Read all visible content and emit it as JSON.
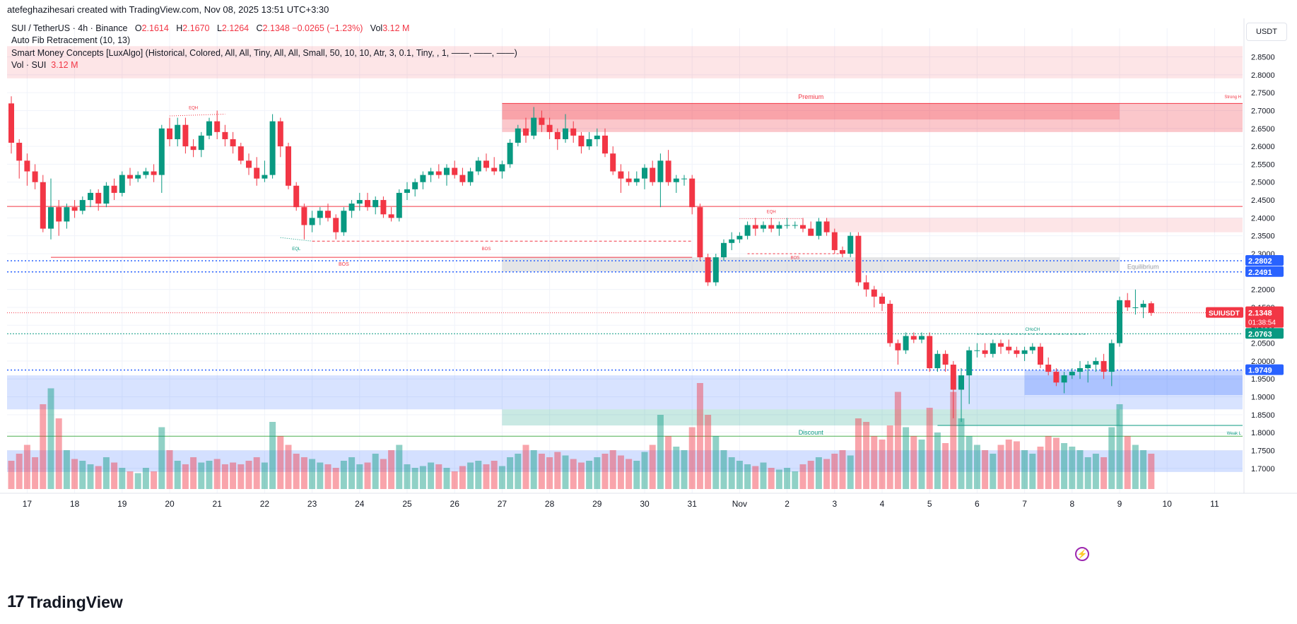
{
  "header": {
    "text": "atefeghazihesari created with TradingView.com, Nov 08, 2025 13:51 UTC+3:30"
  },
  "legend": {
    "symbol": "SUI / TetherUS · 4h · Binance",
    "o_label": "O",
    "o_value": "2.1614",
    "h_label": "H",
    "h_value": "2.1670",
    "l_label": "L",
    "l_value": "2.1264",
    "c_label": "C",
    "c_value": "2.1348",
    "change": "−0.0265 (−1.23%)",
    "vol_label": "Vol",
    "vol_value": "3.12 M",
    "indicator1": "Auto Fib Retracement (10, 13)",
    "indicator2": "Smart Money Concepts [LuxAlgo] (Historical, Colored, All, All, Tiny, All, All, Small, 50, 10, 10, Atr, 3, 0.1, Tiny, , 1, ——, ——, ——)",
    "indicator3_label": "Vol · SUI",
    "indicator3_value": "3.12 M"
  },
  "currency": "USDT",
  "footer": {
    "logo_mark": "17",
    "logo_text": "TradingView"
  },
  "colors": {
    "up": "#089981",
    "down": "#f23645",
    "blue": "#2962ff",
    "grid": "#f0f3fa"
  },
  "chart_data": {
    "type": "candlestick",
    "symbol": "SUIUSDT",
    "timeframe": "4h",
    "ylim": [
      1.67,
      2.93
    ],
    "y_ticks": [
      1.7,
      1.75,
      1.8,
      1.85,
      1.9,
      1.95,
      2.0,
      2.05,
      2.1,
      2.15,
      2.2,
      2.25,
      2.3,
      2.35,
      2.4,
      2.45,
      2.5,
      2.55,
      2.6,
      2.65,
      2.7,
      2.75,
      2.8,
      2.85
    ],
    "x_labels": [
      "17",
      "18",
      "19",
      "20",
      "21",
      "22",
      "23",
      "24",
      "25",
      "26",
      "27",
      "28",
      "29",
      "30",
      "31",
      "Nov",
      "2",
      "3",
      "4",
      "5",
      "6",
      "7",
      "8",
      "9",
      "10",
      "11"
    ],
    "x_label_index": [
      2,
      8,
      14,
      20,
      26,
      32,
      38,
      44,
      50,
      56,
      62,
      68,
      74,
      80,
      86,
      92,
      98,
      104,
      110,
      116,
      122,
      128,
      134,
      140,
      146,
      152
    ],
    "candles": [
      [
        2.72,
        2.74,
        2.58,
        2.61,
        0.16
      ],
      [
        2.61,
        2.62,
        2.51,
        2.56,
        0.2
      ],
      [
        2.56,
        2.58,
        2.49,
        2.53,
        0.25
      ],
      [
        2.53,
        2.55,
        2.48,
        2.5,
        0.18
      ],
      [
        2.5,
        2.52,
        2.36,
        2.37,
        0.48
      ],
      [
        2.37,
        2.51,
        2.34,
        2.43,
        0.57
      ],
      [
        2.43,
        2.45,
        2.35,
        2.39,
        0.4
      ],
      [
        2.39,
        2.44,
        2.37,
        2.43,
        0.22
      ],
      [
        2.43,
        2.45,
        2.4,
        2.42,
        0.17
      ],
      [
        2.42,
        2.46,
        2.41,
        2.45,
        0.16
      ],
      [
        2.45,
        2.48,
        2.43,
        2.47,
        0.14
      ],
      [
        2.47,
        2.48,
        2.42,
        2.44,
        0.13
      ],
      [
        2.44,
        2.5,
        2.43,
        2.49,
        0.18
      ],
      [
        2.49,
        2.51,
        2.45,
        2.47,
        0.15
      ],
      [
        2.47,
        2.53,
        2.46,
        2.52,
        0.12
      ],
      [
        2.52,
        2.54,
        2.49,
        2.51,
        0.1
      ],
      [
        2.51,
        2.53,
        2.5,
        2.52,
        0.09
      ],
      [
        2.52,
        2.54,
        2.51,
        2.53,
        0.12
      ],
      [
        2.53,
        2.55,
        2.5,
        2.52,
        0.1
      ],
      [
        2.52,
        2.66,
        2.47,
        2.65,
        0.35
      ],
      [
        2.65,
        2.68,
        2.6,
        2.62,
        0.22
      ],
      [
        2.62,
        2.68,
        2.6,
        2.66,
        0.16
      ],
      [
        2.66,
        2.68,
        2.58,
        2.6,
        0.14
      ],
      [
        2.6,
        2.62,
        2.57,
        2.59,
        0.18
      ],
      [
        2.59,
        2.64,
        2.57,
        2.63,
        0.15
      ],
      [
        2.63,
        2.68,
        2.62,
        2.67,
        0.16
      ],
      [
        2.67,
        2.7,
        2.62,
        2.64,
        0.17
      ],
      [
        2.64,
        2.66,
        2.6,
        2.62,
        0.14
      ],
      [
        2.62,
        2.64,
        2.58,
        2.6,
        0.15
      ],
      [
        2.6,
        2.61,
        2.55,
        2.56,
        0.14
      ],
      [
        2.56,
        2.58,
        2.52,
        2.54,
        0.16
      ],
      [
        2.54,
        2.57,
        2.49,
        2.51,
        0.18
      ],
      [
        2.51,
        2.56,
        2.5,
        2.52,
        0.15
      ],
      [
        2.52,
        2.69,
        2.51,
        2.67,
        0.38
      ],
      [
        2.67,
        2.68,
        2.57,
        2.6,
        0.3
      ],
      [
        2.6,
        2.61,
        2.48,
        2.49,
        0.25
      ],
      [
        2.49,
        2.5,
        2.42,
        2.43,
        0.2
      ],
      [
        2.43,
        2.44,
        2.34,
        2.38,
        0.18
      ],
      [
        2.38,
        2.42,
        2.36,
        2.4,
        0.17
      ],
      [
        2.4,
        2.43,
        2.38,
        2.42,
        0.15
      ],
      [
        2.42,
        2.44,
        2.39,
        2.4,
        0.14
      ],
      [
        2.4,
        2.41,
        2.34,
        2.36,
        0.12
      ],
      [
        2.36,
        2.43,
        2.35,
        2.42,
        0.16
      ],
      [
        2.42,
        2.45,
        2.4,
        2.44,
        0.18
      ],
      [
        2.44,
        2.47,
        2.42,
        2.45,
        0.14
      ],
      [
        2.45,
        2.47,
        2.42,
        2.43,
        0.15
      ],
      [
        2.43,
        2.46,
        2.41,
        2.45,
        0.2
      ],
      [
        2.45,
        2.46,
        2.4,
        2.41,
        0.17
      ],
      [
        2.41,
        2.43,
        2.39,
        2.4,
        0.22
      ],
      [
        2.4,
        2.48,
        2.39,
        2.47,
        0.25
      ],
      [
        2.47,
        2.5,
        2.45,
        2.48,
        0.14
      ],
      [
        2.48,
        2.51,
        2.46,
        2.5,
        0.12
      ],
      [
        2.5,
        2.53,
        2.48,
        2.52,
        0.13
      ],
      [
        2.52,
        2.54,
        2.5,
        2.53,
        0.15
      ],
      [
        2.53,
        2.55,
        2.51,
        2.52,
        0.14
      ],
      [
        2.52,
        2.55,
        2.49,
        2.54,
        0.12
      ],
      [
        2.54,
        2.56,
        2.51,
        2.52,
        0.1
      ],
      [
        2.52,
        2.54,
        2.49,
        2.5,
        0.13
      ],
      [
        2.5,
        2.54,
        2.49,
        2.53,
        0.15
      ],
      [
        2.53,
        2.57,
        2.52,
        2.56,
        0.16
      ],
      [
        2.56,
        2.58,
        2.53,
        2.54,
        0.14
      ],
      [
        2.54,
        2.57,
        2.52,
        2.53,
        0.16
      ],
      [
        2.53,
        2.56,
        2.51,
        2.55,
        0.13
      ],
      [
        2.55,
        2.62,
        2.54,
        2.61,
        0.18
      ],
      [
        2.61,
        2.66,
        2.6,
        2.65,
        0.2
      ],
      [
        2.65,
        2.68,
        2.61,
        2.63,
        0.25
      ],
      [
        2.63,
        2.71,
        2.62,
        2.68,
        0.22
      ],
      [
        2.68,
        2.7,
        2.64,
        2.66,
        0.2
      ],
      [
        2.66,
        2.68,
        2.62,
        2.64,
        0.18
      ],
      [
        2.64,
        2.65,
        2.59,
        2.62,
        0.21
      ],
      [
        2.62,
        2.69,
        2.61,
        2.65,
        0.19
      ],
      [
        2.65,
        2.67,
        2.61,
        2.63,
        0.17
      ],
      [
        2.63,
        2.64,
        2.58,
        2.6,
        0.15
      ],
      [
        2.6,
        2.64,
        2.59,
        2.62,
        0.16
      ],
      [
        2.62,
        2.65,
        2.6,
        2.63,
        0.18
      ],
      [
        2.63,
        2.65,
        2.57,
        2.58,
        0.2
      ],
      [
        2.58,
        2.6,
        2.52,
        2.53,
        0.22
      ],
      [
        2.53,
        2.55,
        2.47,
        2.51,
        0.19
      ],
      [
        2.51,
        2.53,
        2.49,
        2.5,
        0.17
      ],
      [
        2.5,
        2.53,
        2.49,
        2.51,
        0.16
      ],
      [
        2.51,
        2.55,
        2.48,
        2.54,
        0.21
      ],
      [
        2.54,
        2.56,
        2.49,
        2.5,
        0.25
      ],
      [
        2.5,
        2.58,
        2.43,
        2.56,
        0.42
      ],
      [
        2.56,
        2.59,
        2.49,
        2.5,
        0.3
      ],
      [
        2.5,
        2.52,
        2.47,
        2.51,
        0.24
      ],
      [
        2.51,
        2.52,
        2.49,
        2.51,
        0.22
      ],
      [
        2.51,
        2.52,
        2.41,
        2.43,
        0.35
      ],
      [
        2.43,
        2.44,
        2.28,
        2.29,
        0.6
      ],
      [
        2.29,
        2.3,
        2.21,
        2.22,
        0.42
      ],
      [
        2.22,
        2.3,
        2.21,
        2.29,
        0.3
      ],
      [
        2.29,
        2.34,
        2.28,
        2.33,
        0.22
      ],
      [
        2.33,
        2.36,
        2.31,
        2.34,
        0.18
      ],
      [
        2.34,
        2.36,
        2.33,
        2.35,
        0.16
      ],
      [
        2.35,
        2.39,
        2.34,
        2.38,
        0.14
      ],
      [
        2.38,
        2.4,
        2.35,
        2.37,
        0.13
      ],
      [
        2.37,
        2.39,
        2.36,
        2.38,
        0.15
      ],
      [
        2.38,
        2.4,
        2.36,
        2.37,
        0.12
      ],
      [
        2.37,
        2.39,
        2.35,
        2.38,
        0.11
      ],
      [
        2.38,
        2.4,
        2.37,
        2.38,
        0.12
      ],
      [
        2.38,
        2.39,
        2.37,
        2.38,
        0.1
      ],
      [
        2.38,
        2.4,
        2.36,
        2.37,
        0.14
      ],
      [
        2.37,
        2.39,
        2.35,
        2.35,
        0.16
      ],
      [
        2.35,
        2.4,
        2.34,
        2.39,
        0.18
      ],
      [
        2.39,
        2.4,
        2.35,
        2.36,
        0.17
      ],
      [
        2.36,
        2.37,
        2.3,
        2.31,
        0.2
      ],
      [
        2.31,
        2.32,
        2.29,
        2.3,
        0.22
      ],
      [
        2.3,
        2.36,
        2.29,
        2.35,
        0.19
      ],
      [
        2.35,
        2.36,
        2.21,
        2.22,
        0.4
      ],
      [
        2.22,
        2.24,
        2.18,
        2.2,
        0.38
      ],
      [
        2.2,
        2.21,
        2.15,
        2.18,
        0.3
      ],
      [
        2.18,
        2.19,
        2.14,
        2.16,
        0.28
      ],
      [
        2.16,
        2.17,
        2.04,
        2.05,
        0.36
      ],
      [
        2.05,
        2.06,
        1.99,
        2.03,
        0.55
      ],
      [
        2.03,
        2.08,
        2.02,
        2.07,
        0.35
      ],
      [
        2.07,
        2.08,
        2.05,
        2.06,
        0.3
      ],
      [
        2.06,
        2.08,
        2.05,
        2.07,
        0.28
      ],
      [
        2.07,
        2.08,
        1.97,
        1.98,
        0.46
      ],
      [
        1.98,
        2.03,
        1.97,
        2.02,
        0.32
      ],
      [
        2.02,
        2.03,
        1.97,
        1.99,
        0.26
      ],
      [
        1.99,
        2.0,
        1.84,
        1.92,
        0.55
      ],
      [
        1.92,
        1.98,
        1.83,
        1.96,
        0.4
      ],
      [
        1.96,
        2.04,
        1.88,
        2.03,
        0.3
      ],
      [
        2.03,
        2.05,
        2.01,
        2.03,
        0.25
      ],
      [
        2.03,
        2.05,
        2.01,
        2.02,
        0.22
      ],
      [
        2.02,
        2.06,
        2.01,
        2.05,
        0.2
      ],
      [
        2.05,
        2.06,
        2.02,
        2.04,
        0.25
      ],
      [
        2.04,
        2.06,
        2.02,
        2.03,
        0.28
      ],
      [
        2.03,
        2.04,
        2.01,
        2.02,
        0.27
      ],
      [
        2.02,
        2.04,
        2.0,
        2.03,
        0.22
      ],
      [
        2.03,
        2.05,
        2.02,
        2.04,
        0.2
      ],
      [
        2.04,
        2.05,
        1.98,
        1.99,
        0.24
      ],
      [
        1.99,
        2.01,
        1.96,
        1.97,
        0.3
      ],
      [
        1.97,
        1.98,
        1.93,
        1.94,
        0.29
      ],
      [
        1.94,
        1.97,
        1.91,
        1.96,
        0.26
      ],
      [
        1.96,
        1.98,
        1.95,
        1.97,
        0.24
      ],
      [
        1.97,
        2.0,
        1.95,
        1.98,
        0.22
      ],
      [
        1.98,
        2.0,
        1.94,
        1.99,
        0.18
      ],
      [
        1.99,
        2.01,
        1.97,
        2.0,
        0.2
      ],
      [
        2.0,
        2.02,
        1.95,
        1.97,
        0.18
      ],
      [
        1.97,
        2.06,
        1.93,
        2.05,
        0.35
      ],
      [
        2.05,
        2.18,
        2.04,
        2.17,
        0.48
      ],
      [
        2.17,
        2.19,
        2.14,
        2.15,
        0.3
      ],
      [
        2.15,
        2.2,
        2.13,
        2.15,
        0.25
      ],
      [
        2.15,
        2.17,
        2.12,
        2.16,
        0.22
      ],
      [
        2.1614,
        2.167,
        2.1264,
        2.1348,
        0.2
      ]
    ],
    "fib_levels": [
      {
        "price": 2.2802,
        "label": "2.2802"
      },
      {
        "price": 2.2491,
        "label": "2.2491"
      },
      {
        "price": 1.9749,
        "label": "1.9749"
      }
    ],
    "current_price": 2.1348,
    "current_label": "2.1348",
    "countdown": "01:38:54",
    "symbol_tag": "SUIUSDT",
    "support_level": {
      "price": 2.0763,
      "label": "2.0763"
    },
    "zone_labels": {
      "premium": "Premium",
      "equilibrium": "Equilibrium",
      "discount": "Discount",
      "strong_high": "Strong H",
      "weak_low": "Weak L"
    },
    "structure_labels": {
      "eqh1": "EQH",
      "eql": "EQL",
      "bos1": "BOS",
      "bos2": "BOS",
      "eqh2": "EQH",
      "bos3": "BOS",
      "choch": "CHoCH"
    },
    "volume_max": 0.62
  }
}
